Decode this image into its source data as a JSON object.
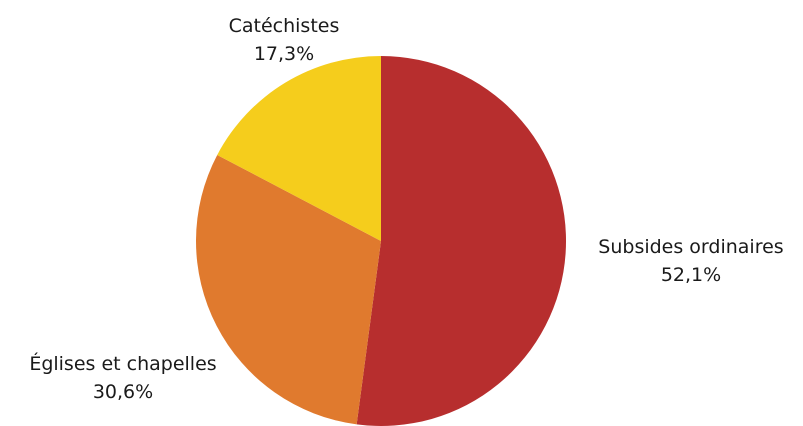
{
  "chart_data": {
    "type": "pie",
    "title": "",
    "slices": [
      {
        "label": "Subsides ordinaires",
        "value": 52.1,
        "value_text": "52,1%",
        "color": "#b72e2e"
      },
      {
        "label": "Églises et chapelles",
        "value": 30.6,
        "value_text": "30,6%",
        "color": "#e07a2e"
      },
      {
        "label": "Catéchistes",
        "value": 17.3,
        "value_text": "17,3%",
        "color": "#f5cd1c"
      }
    ],
    "start": "top",
    "direction": "clockwise",
    "legend": "none"
  }
}
